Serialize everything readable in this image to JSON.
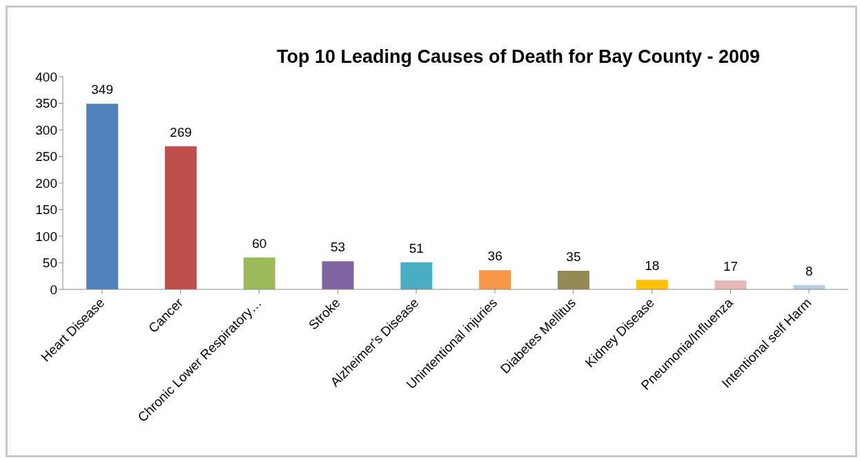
{
  "chart_data": {
    "type": "bar",
    "title": "Top 10 Leading Causes of Death for Bay County - 2009",
    "categories": [
      "Heart Disease",
      "Cancer",
      "Chronic Lower Respiratory…",
      "Stroke",
      "Alzheimer's Disease",
      "Unintentional injuries",
      "Diabetes Mellitus",
      "Kidney Disease",
      "Pneumonia/Influenza",
      "Intentional self Harm"
    ],
    "values": [
      349,
      269,
      60,
      53,
      51,
      36,
      35,
      18,
      17,
      8
    ],
    "colors": [
      "#4f81bd",
      "#c0504d",
      "#9bbb59",
      "#8064a2",
      "#4bacc6",
      "#f79646",
      "#948a54",
      "#ffc000",
      "#e6b9b8",
      "#b9cde5"
    ],
    "ylim": [
      0,
      400
    ],
    "yticks": [
      0,
      50,
      100,
      150,
      200,
      250,
      300,
      350,
      400
    ],
    "grid": false,
    "legend": false,
    "data_labels": true
  }
}
